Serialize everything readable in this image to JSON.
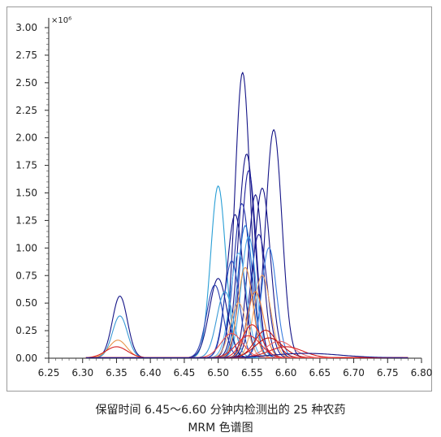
{
  "caption": {
    "line1": "保留时间 6.45～6.60 分钟内检测出的 25 种农药",
    "line2": "MRM 色谱图"
  },
  "chart_data": {
    "type": "line",
    "title": "",
    "xlabel": "",
    "ylabel": "",
    "y_multiplier": "×10⁶",
    "xlim": [
      6.25,
      6.8
    ],
    "ylim": [
      0,
      3.0
    ],
    "x_ticks": [
      "6.25",
      "6.30",
      "6.35",
      "6.40",
      "6.45",
      "6.50",
      "6.55",
      "6.60",
      "6.65",
      "6.70",
      "6.75",
      "6.80"
    ],
    "y_ticks": [
      "0.00",
      "0.25",
      "0.50",
      "0.75",
      "1.00",
      "1.25",
      "1.50",
      "1.75",
      "2.00",
      "2.25",
      "2.50",
      "2.75",
      "3.00"
    ],
    "grid": false,
    "legend": "none",
    "series": [
      {
        "color": "#141487",
        "peaks": [
          {
            "center": 6.355,
            "height": 0.56,
            "width": 0.011
          }
        ]
      },
      {
        "color": "#3a9ad6",
        "peaks": [
          {
            "center": 6.355,
            "height": 0.38,
            "width": 0.011
          }
        ]
      },
      {
        "color": "#e8944a",
        "peaks": [
          {
            "center": 6.352,
            "height": 0.16,
            "width": 0.013
          }
        ]
      },
      {
        "color": "#d62020",
        "peaks": [
          {
            "center": 6.35,
            "height": 0.1,
            "width": 0.016
          }
        ]
      },
      {
        "color": "#141487",
        "peaks": [
          {
            "center": 6.536,
            "height": 2.59,
            "width": 0.011
          }
        ]
      },
      {
        "color": "#141487",
        "peaks": [
          {
            "center": 6.582,
            "height": 2.07,
            "width": 0.012
          }
        ]
      },
      {
        "color": "#141487",
        "peaks": [
          {
            "center": 6.542,
            "height": 1.85,
            "width": 0.012
          }
        ]
      },
      {
        "color": "#20209a",
        "peaks": [
          {
            "center": 6.545,
            "height": 1.7,
            "width": 0.011
          }
        ]
      },
      {
        "color": "#2a9fd6",
        "peaks": [
          {
            "center": 6.5,
            "height": 1.56,
            "width": 0.011
          }
        ]
      },
      {
        "color": "#141487",
        "peaks": [
          {
            "center": 6.565,
            "height": 1.54,
            "width": 0.012
          }
        ]
      },
      {
        "color": "#1a1a8c",
        "peaks": [
          {
            "center": 6.555,
            "height": 1.48,
            "width": 0.011
          }
        ]
      },
      {
        "color": "#1f2ea6",
        "peaks": [
          {
            "center": 6.535,
            "height": 1.4,
            "width": 0.012
          }
        ]
      },
      {
        "color": "#141487",
        "peaks": [
          {
            "center": 6.525,
            "height": 1.3,
            "width": 0.012
          }
        ]
      },
      {
        "color": "#1c6fd0",
        "peaks": [
          {
            "center": 6.54,
            "height": 1.2,
            "width": 0.011
          }
        ]
      },
      {
        "color": "#20209a",
        "peaks": [
          {
            "center": 6.56,
            "height": 1.12,
            "width": 0.012
          }
        ]
      },
      {
        "color": "#4aa8e8",
        "peaks": [
          {
            "center": 6.545,
            "height": 1.1,
            "width": 0.011
          }
        ]
      },
      {
        "color": "#3a7ee0",
        "peaks": [
          {
            "center": 6.575,
            "height": 1.0,
            "width": 0.011
          }
        ]
      },
      {
        "color": "#5bb5ef",
        "peaks": [
          {
            "center": 6.53,
            "height": 0.95,
            "width": 0.012
          }
        ]
      },
      {
        "color": "#2a4fc0",
        "peaks": [
          {
            "center": 6.52,
            "height": 0.88,
            "width": 0.011
          }
        ]
      },
      {
        "color": "#141487",
        "peaks": [
          {
            "center": 6.5,
            "height": 0.72,
            "width": 0.013
          }
        ]
      },
      {
        "color": "#2a3fb0",
        "peaks": [
          {
            "center": 6.495,
            "height": 0.66,
            "width": 0.012
          }
        ]
      },
      {
        "color": "#3a9ad6",
        "peaks": [
          {
            "center": 6.51,
            "height": 0.6,
            "width": 0.012
          }
        ]
      },
      {
        "color": "#e8944a",
        "peaks": [
          {
            "center": 6.54,
            "height": 0.82,
            "width": 0.011
          }
        ]
      },
      {
        "color": "#f0a868",
        "peaks": [
          {
            "center": 6.565,
            "height": 0.75,
            "width": 0.012
          }
        ]
      },
      {
        "color": "#e87a3a",
        "peaks": [
          {
            "center": 6.555,
            "height": 0.6,
            "width": 0.012
          }
        ]
      },
      {
        "color": "#f2b27a",
        "peaks": [
          {
            "center": 6.53,
            "height": 0.5,
            "width": 0.012
          }
        ]
      },
      {
        "color": "#d62020",
        "peaks": [
          {
            "center": 6.55,
            "height": 0.3,
            "width": 0.014
          }
        ]
      },
      {
        "color": "#c41818",
        "peaks": [
          {
            "center": 6.57,
            "height": 0.25,
            "width": 0.016
          }
        ]
      },
      {
        "color": "#e03030",
        "peaks": [
          {
            "center": 6.545,
            "height": 0.2,
            "width": 0.018
          }
        ]
      },
      {
        "color": "#b81010",
        "peaks": [
          {
            "center": 6.575,
            "height": 0.18,
            "width": 0.02
          }
        ]
      },
      {
        "color": "#e85050",
        "peaks": [
          {
            "center": 6.52,
            "height": 0.22,
            "width": 0.016
          }
        ]
      },
      {
        "color": "#ee6a6a",
        "peaks": [
          {
            "center": 6.59,
            "height": 0.15,
            "width": 0.02
          }
        ]
      },
      {
        "color": "#d62020",
        "peaks": [
          {
            "center": 6.6,
            "height": 0.1,
            "width": 0.025
          }
        ]
      },
      {
        "color": "#141487",
        "peaks": [
          {
            "center": 6.63,
            "height": 0.04,
            "width": 0.05
          }
        ]
      }
    ]
  }
}
